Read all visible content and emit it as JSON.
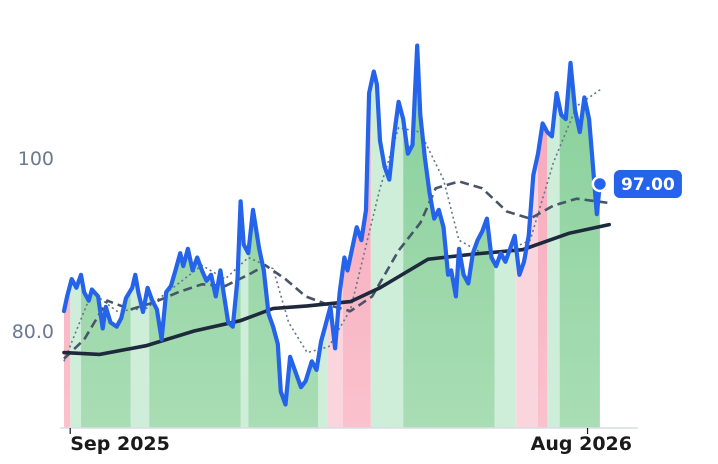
{
  "chart_data": {
    "type": "line",
    "title": "",
    "xlabel": "",
    "ylabel": "",
    "x_range": [
      "2025-08-28",
      "2026-08-31"
    ],
    "ylim": [
      68,
      118
    ],
    "y_ticks": [
      {
        "value": 80,
        "label": "80.0"
      },
      {
        "value": 100,
        "label": "100"
      }
    ],
    "x_ticks": [
      {
        "date": "2025-09-01",
        "label": "Sep 2025"
      },
      {
        "date": "2026-08-01",
        "label": "Aug 2026"
      }
    ],
    "grid": false,
    "last_value": {
      "value": 97.0,
      "label": "97.00"
    },
    "colors": {
      "price": "#2563eb",
      "ma_long": "#1e293b",
      "ma_mid": "#475569",
      "ma_short": "#64748b",
      "fill_up": "#86cf97",
      "fill_down": "#f7a8b8",
      "band_up": "#cfeeda",
      "band_down": "#fbd5dd",
      "tick_text": "#6b7a90"
    },
    "regime_bands": [
      {
        "start": "2025-08-28",
        "end": "2025-09-01",
        "kind": "down_strong"
      },
      {
        "start": "2025-09-01",
        "end": "2025-09-08",
        "kind": "up_light"
      },
      {
        "start": "2025-09-08",
        "end": "2025-10-10",
        "kind": "up_strong"
      },
      {
        "start": "2025-10-10",
        "end": "2025-10-22",
        "kind": "up_light"
      },
      {
        "start": "2025-10-22",
        "end": "2025-12-20",
        "kind": "up_strong"
      },
      {
        "start": "2025-12-20",
        "end": "2025-12-25",
        "kind": "up_light"
      },
      {
        "start": "2025-12-25",
        "end": "2026-02-08",
        "kind": "up_strong"
      },
      {
        "start": "2026-02-08",
        "end": "2026-02-14",
        "kind": "up_light"
      },
      {
        "start": "2026-02-14",
        "end": "2026-02-24",
        "kind": "down_light"
      },
      {
        "start": "2026-02-24",
        "end": "2026-03-14",
        "kind": "down_strong"
      },
      {
        "start": "2026-03-14",
        "end": "2026-04-04",
        "kind": "up_light"
      },
      {
        "start": "2026-04-04",
        "end": "2026-06-02",
        "kind": "up_strong"
      },
      {
        "start": "2026-06-02",
        "end": "2026-06-16",
        "kind": "up_light"
      },
      {
        "start": "2026-06-16",
        "end": "2026-06-30",
        "kind": "down_light"
      },
      {
        "start": "2026-06-30",
        "end": "2026-07-06",
        "kind": "down_strong"
      },
      {
        "start": "2026-07-06",
        "end": "2026-07-14",
        "kind": "up_light"
      },
      {
        "start": "2026-07-14",
        "end": "2026-08-31",
        "kind": "up_strong"
      }
    ],
    "series": [
      {
        "role": "price",
        "points": [
          [
            "2025-08-28",
            82.3
          ],
          [
            "2025-08-30",
            84.0
          ],
          [
            "2025-09-02",
            86.0
          ],
          [
            "2025-09-05",
            85.0
          ],
          [
            "2025-09-08",
            86.5
          ],
          [
            "2025-09-10",
            84.5
          ],
          [
            "2025-09-13",
            83.5
          ],
          [
            "2025-09-15",
            84.8
          ],
          [
            "2025-09-19",
            84.0
          ],
          [
            "2025-09-22",
            80.3
          ],
          [
            "2025-09-24",
            82.8
          ],
          [
            "2025-09-27",
            81.0
          ],
          [
            "2025-10-01",
            80.5
          ],
          [
            "2025-10-04",
            81.5
          ],
          [
            "2025-10-07",
            83.8
          ],
          [
            "2025-10-11",
            85.0
          ],
          [
            "2025-10-13",
            86.5
          ],
          [
            "2025-10-15",
            84.5
          ],
          [
            "2025-10-18",
            82.2
          ],
          [
            "2025-10-21",
            85.0
          ],
          [
            "2025-10-24",
            83.5
          ],
          [
            "2025-10-27",
            82.5
          ],
          [
            "2025-10-30",
            79.0
          ],
          [
            "2025-11-02",
            84.5
          ],
          [
            "2025-11-05",
            85.2
          ],
          [
            "2025-11-08",
            87.0
          ],
          [
            "2025-11-11",
            89.0
          ],
          [
            "2025-11-13",
            87.5
          ],
          [
            "2025-11-16",
            89.5
          ],
          [
            "2025-11-19",
            87.0
          ],
          [
            "2025-11-22",
            88.5
          ],
          [
            "2025-11-25",
            87.0
          ],
          [
            "2025-11-28",
            85.8
          ],
          [
            "2025-12-01",
            86.5
          ],
          [
            "2025-12-04",
            84.0
          ],
          [
            "2025-12-07",
            87.0
          ],
          [
            "2025-12-09",
            84.5
          ],
          [
            "2025-12-12",
            81.0
          ],
          [
            "2025-12-15",
            80.5
          ],
          [
            "2025-12-18",
            86.0
          ],
          [
            "2025-12-20",
            95.0
          ],
          [
            "2025-12-22",
            90.0
          ],
          [
            "2025-12-25",
            89.0
          ],
          [
            "2025-12-28",
            94.0
          ],
          [
            "2026-01-01",
            89.5
          ],
          [
            "2026-01-04",
            87.0
          ],
          [
            "2026-01-07",
            82.0
          ],
          [
            "2026-01-10",
            80.5
          ],
          [
            "2026-01-13",
            78.5
          ],
          [
            "2026-01-15",
            73.0
          ],
          [
            "2026-01-18",
            71.5
          ],
          [
            "2026-01-21",
            77.0
          ],
          [
            "2026-01-25",
            75.0
          ],
          [
            "2026-01-28",
            73.5
          ],
          [
            "2026-01-31",
            74.2
          ],
          [
            "2026-02-04",
            76.5
          ],
          [
            "2026-02-07",
            75.5
          ],
          [
            "2026-02-10",
            78.8
          ],
          [
            "2026-02-13",
            80.8
          ],
          [
            "2026-02-16",
            82.8
          ],
          [
            "2026-02-19",
            78.0
          ],
          [
            "2026-02-22",
            84.5
          ],
          [
            "2026-02-25",
            88.5
          ],
          [
            "2026-02-27",
            87.0
          ],
          [
            "2026-03-02",
            89.5
          ],
          [
            "2026-03-05",
            92.0
          ],
          [
            "2026-03-08",
            90.5
          ],
          [
            "2026-03-11",
            94.0
          ],
          [
            "2026-03-13",
            107.5
          ],
          [
            "2026-03-16",
            110.0
          ],
          [
            "2026-03-18",
            108.5
          ],
          [
            "2026-03-20",
            102.0
          ],
          [
            "2026-03-23",
            99.0
          ],
          [
            "2026-03-26",
            97.5
          ],
          [
            "2026-03-29",
            102.5
          ],
          [
            "2026-04-01",
            106.5
          ],
          [
            "2026-04-04",
            104.5
          ],
          [
            "2026-04-07",
            100.5
          ],
          [
            "2026-04-10",
            101.5
          ],
          [
            "2026-04-13",
            113.0
          ],
          [
            "2026-04-15",
            105.0
          ],
          [
            "2026-04-18",
            100.0
          ],
          [
            "2026-04-21",
            96.0
          ],
          [
            "2026-04-24",
            93.0
          ],
          [
            "2026-04-27",
            94.0
          ],
          [
            "2026-04-30",
            92.0
          ],
          [
            "2026-05-03",
            86.5
          ],
          [
            "2026-05-05",
            87.0
          ],
          [
            "2026-05-08",
            84.0
          ],
          [
            "2026-05-10",
            89.5
          ],
          [
            "2026-05-13",
            86.5
          ],
          [
            "2026-05-16",
            85.5
          ],
          [
            "2026-05-19",
            89.0
          ],
          [
            "2026-05-22",
            90.5
          ],
          [
            "2026-05-25",
            91.5
          ],
          [
            "2026-05-28",
            93.0
          ],
          [
            "2026-05-31",
            88.5
          ],
          [
            "2026-06-03",
            87.5
          ],
          [
            "2026-06-06",
            89.0
          ],
          [
            "2026-06-09",
            88.0
          ],
          [
            "2026-06-12",
            89.5
          ],
          [
            "2026-06-15",
            91.0
          ],
          [
            "2026-06-18",
            86.5
          ],
          [
            "2026-06-21",
            88.0
          ],
          [
            "2026-06-24",
            91.0
          ],
          [
            "2026-06-27",
            98.0
          ],
          [
            "2026-06-30",
            100.5
          ],
          [
            "2026-07-03",
            104.0
          ],
          [
            "2026-07-06",
            103.0
          ],
          [
            "2026-07-09",
            102.5
          ],
          [
            "2026-07-12",
            107.5
          ],
          [
            "2026-07-15",
            105.0
          ],
          [
            "2026-07-18",
            104.5
          ],
          [
            "2026-07-21",
            111.0
          ],
          [
            "2026-07-24",
            105.5
          ],
          [
            "2026-07-27",
            103.0
          ],
          [
            "2026-07-30",
            107.0
          ],
          [
            "2026-08-02",
            104.5
          ],
          [
            "2026-08-05",
            98.0
          ],
          [
            "2026-08-07",
            93.5
          ],
          [
            "2026-08-09",
            97.0
          ]
        ]
      },
      {
        "role": "ma_long",
        "points": [
          [
            "2025-08-28",
            77.5
          ],
          [
            "2025-09-20",
            77.3
          ],
          [
            "2025-10-20",
            78.3
          ],
          [
            "2025-11-20",
            80.0
          ],
          [
            "2025-12-20",
            81.2
          ],
          [
            "2026-01-10",
            82.6
          ],
          [
            "2026-02-01",
            82.9
          ],
          [
            "2026-03-01",
            83.4
          ],
          [
            "2026-03-20",
            85.0
          ],
          [
            "2026-04-20",
            88.3
          ],
          [
            "2026-05-20",
            88.9
          ],
          [
            "2026-06-20",
            89.4
          ],
          [
            "2026-07-20",
            91.3
          ],
          [
            "2026-08-15",
            92.3
          ]
        ]
      },
      {
        "role": "ma_mid",
        "points": [
          [
            "2025-08-28",
            76.8
          ],
          [
            "2025-09-10",
            79.0
          ],
          [
            "2025-09-25",
            83.5
          ],
          [
            "2025-10-10",
            82.5
          ],
          [
            "2025-10-25",
            83.3
          ],
          [
            "2025-11-10",
            84.5
          ],
          [
            "2025-11-25",
            85.4
          ],
          [
            "2025-12-10",
            85.2
          ],
          [
            "2025-12-25",
            86.5
          ],
          [
            "2026-01-05",
            87.6
          ],
          [
            "2026-01-18",
            86.0
          ],
          [
            "2026-01-31",
            84.0
          ],
          [
            "2026-02-15",
            83.0
          ],
          [
            "2026-03-01",
            82.3
          ],
          [
            "2026-03-15",
            84.0
          ],
          [
            "2026-04-01",
            89.3
          ],
          [
            "2026-04-15",
            92.5
          ],
          [
            "2026-04-25",
            96.5
          ],
          [
            "2026-05-10",
            97.3
          ],
          [
            "2026-05-25",
            96.5
          ],
          [
            "2026-06-10",
            93.8
          ],
          [
            "2026-06-25",
            93.0
          ],
          [
            "2026-07-10",
            94.5
          ],
          [
            "2026-07-25",
            95.3
          ],
          [
            "2026-08-15",
            94.8
          ]
        ]
      },
      {
        "role": "ma_short",
        "points": [
          [
            "2025-08-28",
            76.5
          ],
          [
            "2025-09-15",
            84.5
          ],
          [
            "2025-10-01",
            82.3
          ],
          [
            "2025-10-20",
            82.6
          ],
          [
            "2025-11-10",
            85.5
          ],
          [
            "2025-11-25",
            87.6
          ],
          [
            "2025-12-10",
            86.0
          ],
          [
            "2025-12-25",
            88.5
          ],
          [
            "2026-01-10",
            87.2
          ],
          [
            "2026-01-20",
            81.0
          ],
          [
            "2026-02-01",
            77.5
          ],
          [
            "2026-02-15",
            78.2
          ],
          [
            "2026-03-01",
            82.5
          ],
          [
            "2026-03-20",
            96.5
          ],
          [
            "2026-04-01",
            103.5
          ],
          [
            "2026-04-15",
            103.0
          ],
          [
            "2026-04-30",
            97.5
          ],
          [
            "2026-05-10",
            90.5
          ],
          [
            "2026-05-25",
            89.0
          ],
          [
            "2026-06-10",
            89.3
          ],
          [
            "2026-06-25",
            90.5
          ],
          [
            "2026-07-10",
            99.5
          ],
          [
            "2026-07-25",
            106.0
          ],
          [
            "2026-08-10",
            108.0
          ]
        ]
      }
    ]
  }
}
